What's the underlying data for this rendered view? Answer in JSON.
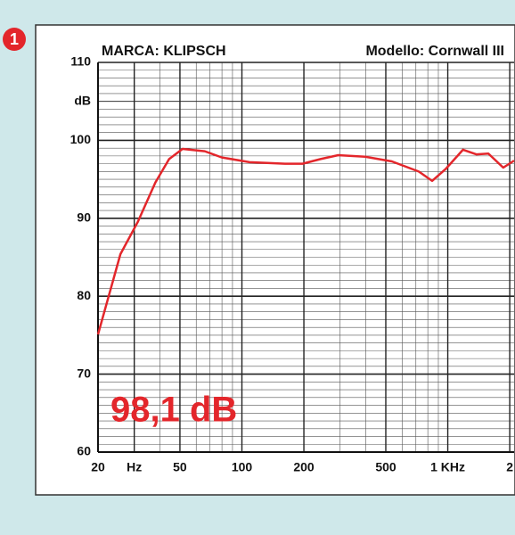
{
  "badge": "1",
  "chart_data": {
    "type": "line",
    "brand": "MARCA: KLIPSCH",
    "model": "Modello: Cornwall III",
    "annotation": "98,1 dB",
    "xscale": "log",
    "grid": true,
    "x": [
      20,
      25.7,
      31.3,
      38,
      44.3,
      51.5,
      66,
      80,
      109,
      162,
      197,
      241,
      294,
      397,
      535,
      723,
      840,
      975,
      1186,
      1380,
      1575,
      1860,
      2100
    ],
    "series": [
      {
        "color": "#e3262b",
        "values": [
          75.1,
          85.4,
          89.6,
          94.6,
          97.6,
          98.9,
          98.6,
          97.8,
          97.2,
          97,
          97,
          97.6,
          98.1,
          97.9,
          97.3,
          96,
          94.8,
          96.3,
          98.8,
          98.2,
          98.3,
          96.5,
          97.4
        ]
      }
    ],
    "xlim": [
      20,
      2100
    ],
    "ylim": [
      60,
      110
    ],
    "xticks": [
      20,
      {
        "value": 30,
        "label": "Hz"
      },
      50,
      100,
      200,
      500,
      {
        "value": 1000,
        "label": "1 KHz"
      },
      {
        "value": 2000,
        "label": "2"
      }
    ],
    "yticks": [
      60,
      70,
      80,
      90,
      100,
      {
        "value": 105,
        "label": "dB"
      },
      110
    ]
  }
}
